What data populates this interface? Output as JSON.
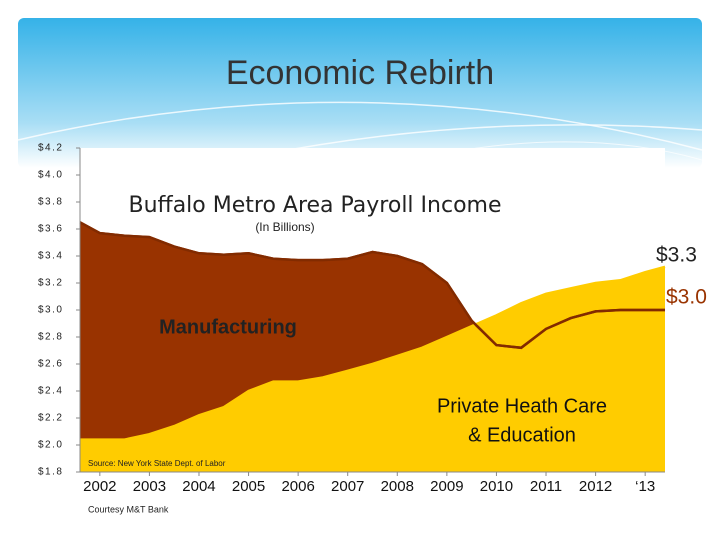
{
  "slide_title": "Economic Rebirth",
  "chart_data": {
    "type": "area",
    "title": "Buffalo Metro Area Payroll Income",
    "subtitle": "(In Billions)",
    "x": [
      2001.6,
      2002,
      2002.5,
      2003,
      2003.5,
      2004,
      2004.5,
      2005,
      2005.5,
      2006,
      2006.5,
      2007,
      2007.5,
      2008,
      2008.5,
      2009,
      2009.5,
      2010,
      2010.5,
      2011,
      2011.5,
      2012,
      2012.5,
      2013,
      2013.4
    ],
    "series": [
      {
        "name": "Manufacturing",
        "color": "#993300",
        "values": [
          3.65,
          3.57,
          3.55,
          3.54,
          3.47,
          3.42,
          3.41,
          3.42,
          3.38,
          3.37,
          3.37,
          3.38,
          3.43,
          3.4,
          3.34,
          3.2,
          2.92,
          2.74,
          2.72,
          2.86,
          2.94,
          2.99,
          3.0,
          3.0,
          3.0
        ]
      },
      {
        "name": "Private Heath Care & Education",
        "name_lines": [
          "Private Heath Care",
          "& Education"
        ],
        "color": "#ffcc00",
        "values": [
          2.04,
          2.04,
          2.04,
          2.08,
          2.14,
          2.22,
          2.28,
          2.4,
          2.47,
          2.47,
          2.5,
          2.55,
          2.6,
          2.66,
          2.72,
          2.8,
          2.88,
          2.96,
          3.05,
          3.12,
          3.16,
          3.2,
          3.22,
          3.28,
          3.32
        ]
      }
    ],
    "end_labels": [
      "$3.3",
      "$3.0"
    ],
    "xlim": [
      2001.6,
      2013.4
    ],
    "xticks": [
      2002,
      2003,
      2004,
      2005,
      2006,
      2007,
      2008,
      2009,
      2010,
      2011,
      2012,
      {
        "value": 2013,
        "label": "‘13"
      }
    ],
    "ylim": [
      1.8,
      4.2
    ],
    "yticks": [
      {
        "value": 1.8,
        "label": "$1.8"
      },
      {
        "value": 2.0,
        "label": "$2.0"
      },
      {
        "value": 2.2,
        "label": "$2.2"
      },
      {
        "value": 2.4,
        "label": "$2.4"
      },
      {
        "value": 2.6,
        "label": "$2.6"
      },
      {
        "value": 2.8,
        "label": "$2.8"
      },
      {
        "value": 3.0,
        "label": "$3.0"
      },
      {
        "value": 3.2,
        "label": "$3.2"
      },
      {
        "value": 3.4,
        "label": "$3.4"
      },
      {
        "value": 3.6,
        "label": "$3.6"
      },
      {
        "value": 3.8,
        "label": "$3.8"
      },
      {
        "value": 4.0,
        "label": "$4.0"
      },
      {
        "value": 4.2,
        "label": "$4.2"
      }
    ],
    "source": "Source: New York State Dept. of Labor",
    "credit": "Courtesy M&T Bank"
  }
}
